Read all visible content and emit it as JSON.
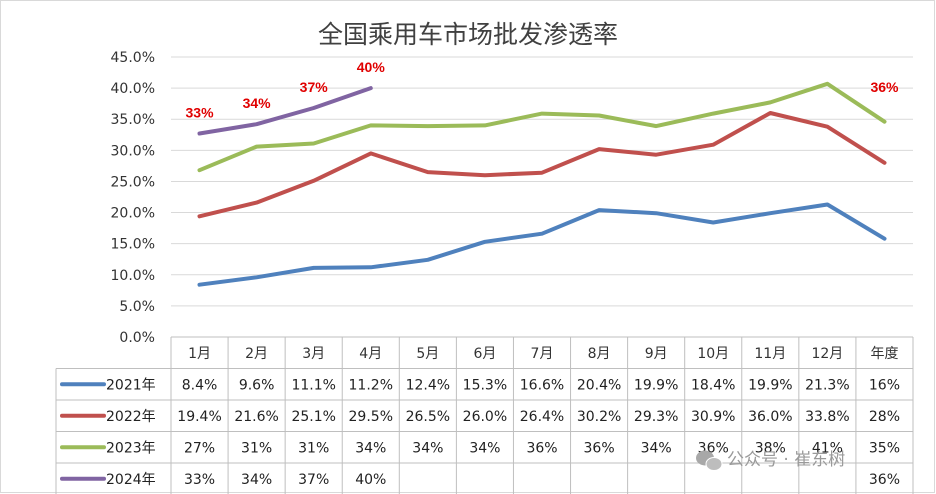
{
  "chart_data": {
    "type": "line",
    "title": "全国乘用车市场批发渗透率",
    "categories": [
      "1月",
      "2月",
      "3月",
      "4月",
      "5月",
      "6月",
      "7月",
      "8月",
      "9月",
      "10月",
      "11月",
      "12月",
      "年度"
    ],
    "ylim": [
      0,
      45
    ],
    "yticks": [
      "0.0%",
      "5.0%",
      "10.0%",
      "15.0%",
      "20.0%",
      "25.0%",
      "30.0%",
      "35.0%",
      "40.0%",
      "45.0%"
    ],
    "grid": true,
    "legend": "table-bottom",
    "series": [
      {
        "name": "2021年",
        "color": "#4f81bd",
        "values": [
          8.4,
          9.6,
          11.1,
          11.2,
          12.4,
          15.3,
          16.6,
          20.4,
          19.9,
          18.4,
          19.9,
          21.3,
          15.8
        ],
        "table": [
          "8.4%",
          "9.6%",
          "11.1%",
          "11.2%",
          "12.4%",
          "15.3%",
          "16.6%",
          "20.4%",
          "19.9%",
          "18.4%",
          "19.9%",
          "21.3%",
          "16%"
        ]
      },
      {
        "name": "2022年",
        "color": "#c0504d",
        "values": [
          19.4,
          21.6,
          25.1,
          29.5,
          26.5,
          26.0,
          26.4,
          30.2,
          29.3,
          30.9,
          36.0,
          33.8,
          28.0
        ],
        "table": [
          "19.4%",
          "21.6%",
          "25.1%",
          "29.5%",
          "26.5%",
          "26.0%",
          "26.4%",
          "30.2%",
          "29.3%",
          "30.9%",
          "36.0%",
          "33.8%",
          "28%"
        ]
      },
      {
        "name": "2023年",
        "color": "#9bbb59",
        "values": [
          26.8,
          30.6,
          31.1,
          34.0,
          33.9,
          34.0,
          35.9,
          35.6,
          33.9,
          35.9,
          37.7,
          40.7,
          34.6
        ],
        "table": [
          "27%",
          "31%",
          "31%",
          "34%",
          "34%",
          "34%",
          "36%",
          "36%",
          "34%",
          "36%",
          "38%",
          "41%",
          "35%"
        ]
      },
      {
        "name": "2024年",
        "color": "#8064a2",
        "values": [
          32.7,
          34.2,
          36.8,
          40.0,
          null,
          null,
          null,
          null,
          null,
          null,
          null,
          null,
          null
        ],
        "table": [
          "33%",
          "34%",
          "37%",
          "40%",
          "",
          "",
          "",
          "",
          "",
          "",
          "",
          "",
          "36%"
        ]
      }
    ],
    "data_labels": [
      {
        "text": "33%",
        "series": 3,
        "index": 0
      },
      {
        "text": "34%",
        "series": 3,
        "index": 1
      },
      {
        "text": "37%",
        "series": 3,
        "index": 2
      },
      {
        "text": "40%",
        "series": 3,
        "index": 3
      },
      {
        "text": "36%",
        "series": 3,
        "index": 12
      }
    ]
  },
  "watermark": {
    "text": "公众号 · 崔东树",
    "icon": "wechat-icon"
  }
}
